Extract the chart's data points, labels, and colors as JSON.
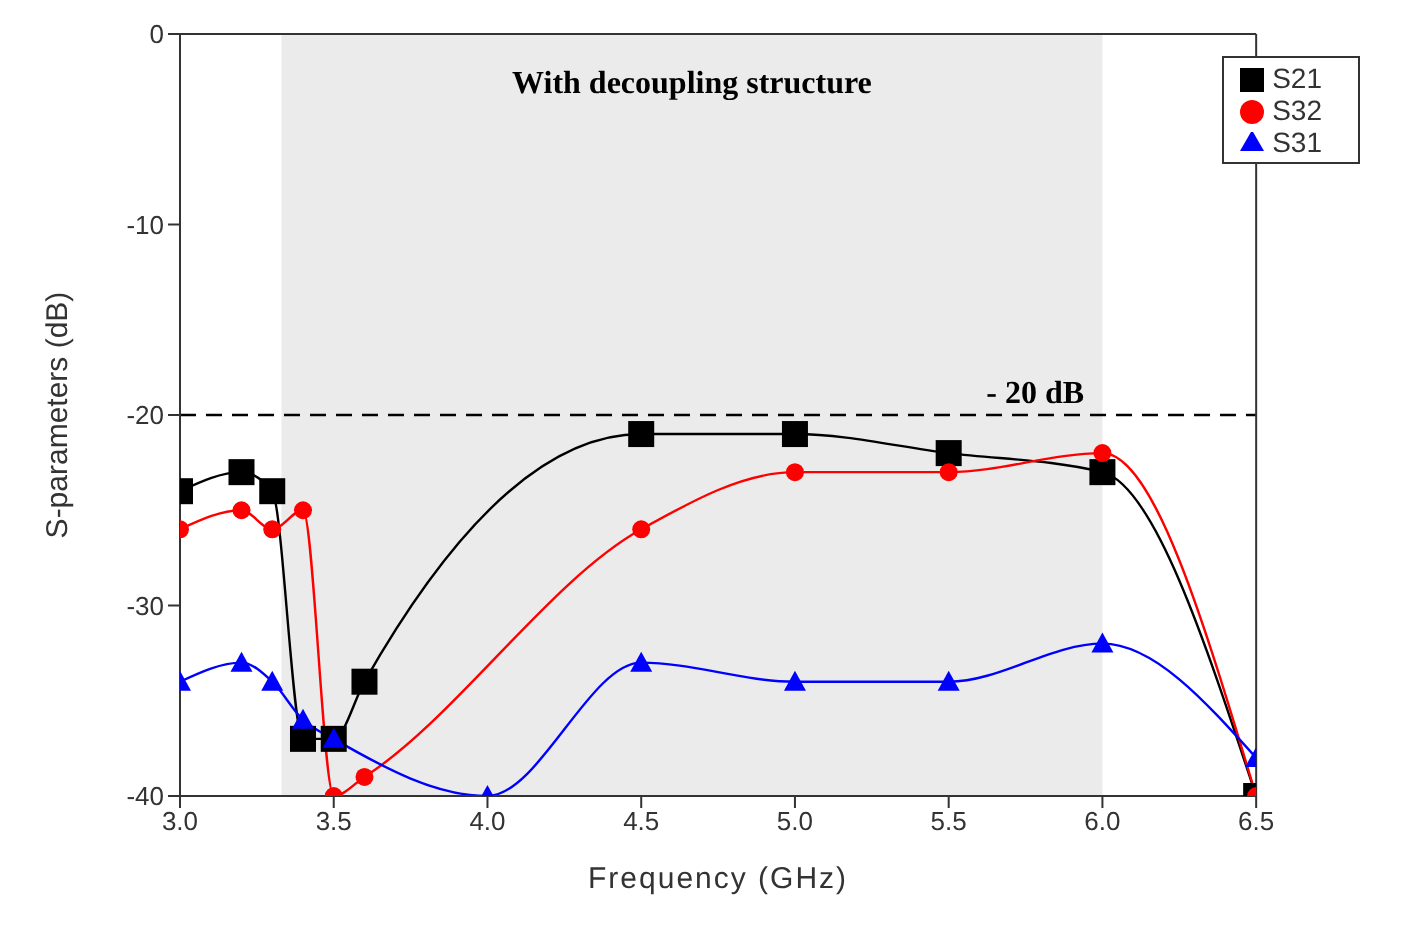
{
  "chart_data": {
    "type": "line",
    "xlabel": "Frequency (GHz)",
    "ylabel": "S-parameters (dB)",
    "xlim": [
      3.0,
      6.5
    ],
    "xticks": [
      {
        "value": 3.0,
        "label": "3.0"
      },
      {
        "value": 3.5,
        "label": "3.5"
      },
      {
        "value": 4.0,
        "label": "4.0"
      },
      {
        "value": 4.5,
        "label": "4.5"
      },
      {
        "value": 5.0,
        "label": "5.0"
      },
      {
        "value": 5.5,
        "label": "5.5"
      },
      {
        "value": 6.0,
        "label": "6.0"
      },
      {
        "value": 6.5,
        "label": "6.5"
      }
    ],
    "ylim": [
      -40,
      0
    ],
    "yticks": [
      -40,
      -30,
      -20,
      -10,
      0
    ],
    "legend": "top right",
    "series": [
      {
        "name": "S21",
        "color": "#000000",
        "marker": "square",
        "x": [
          3.0,
          3.2,
          3.3,
          3.4,
          3.5,
          3.6,
          4.5,
          5.0,
          5.5,
          6.0,
          6.5
        ],
        "values": [
          -24,
          -23,
          -24,
          -37,
          -37,
          -34,
          -21,
          -21,
          -22,
          -23,
          -40
        ]
      },
      {
        "name": "S32",
        "color": "#ff0000",
        "marker": "circle",
        "x": [
          3.0,
          3.2,
          3.3,
          3.4,
          3.5,
          3.6,
          4.5,
          5.0,
          5.5,
          6.0,
          6.5
        ],
        "values": [
          -26,
          -25,
          -26,
          -25,
          -40,
          -39,
          -26,
          -23,
          -23,
          -22,
          -40
        ]
      },
      {
        "name": "S31",
        "color": "#0000ff",
        "marker": "triangle",
        "x": [
          3.0,
          3.2,
          3.3,
          3.4,
          3.5,
          4.0,
          4.5,
          5.0,
          5.5,
          6.0,
          6.5
        ],
        "values": [
          -34,
          -33,
          -34,
          -36,
          -37,
          -40,
          -33,
          -34,
          -34,
          -32,
          -38
        ]
      }
    ],
    "ref_lines": [
      {
        "axis": "y",
        "value": -20,
        "label": "- 20 dB",
        "color": "#000000",
        "line_style": "dashed"
      }
    ],
    "bands": [
      {
        "axis": "x",
        "from": 3.33,
        "to": 6.0,
        "label": "With decoupling structure",
        "color": "#ebebeb"
      }
    ]
  }
}
